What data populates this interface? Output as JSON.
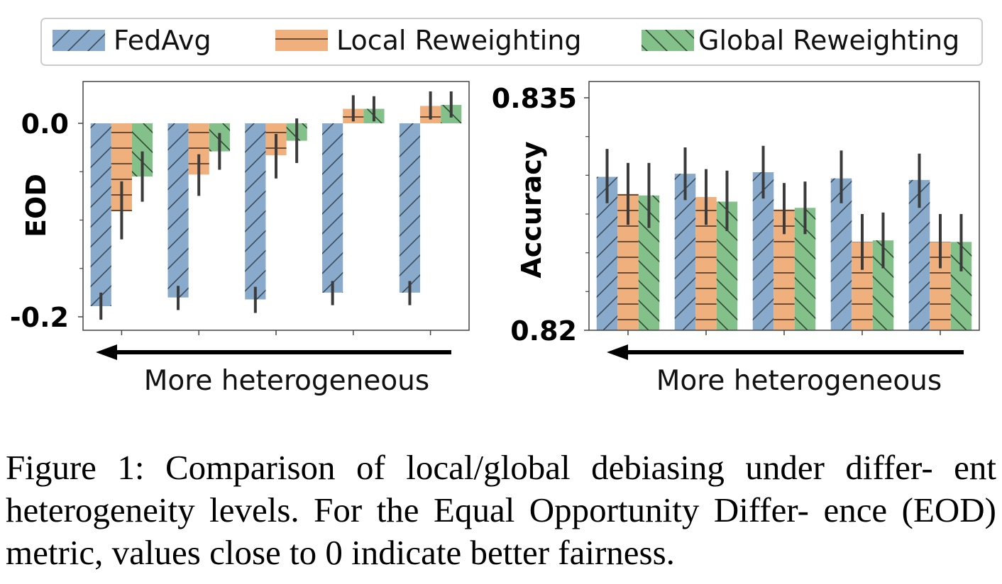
{
  "colors": {
    "fedavg": "#89aacb",
    "local": "#f0b07e",
    "global": "#83c08a",
    "errorbar": "#3b3b3b",
    "frame": "#444444"
  },
  "legend": {
    "items": [
      {
        "label": "FedAvg",
        "hatch": "forward-slash"
      },
      {
        "label": "Local Reweighting",
        "hatch": "horizontal"
      },
      {
        "label": "Global Reweighting",
        "hatch": "back-slash"
      }
    ]
  },
  "chart_data": [
    {
      "type": "bar",
      "ylabel": "EOD",
      "xlabel": "More heterogeneous",
      "ylim": [
        -0.215,
        0.04
      ],
      "yticks": [
        0.0,
        -0.2
      ],
      "ytick_labels": [
        "0.0",
        "-0.2"
      ],
      "grid": false,
      "categories": [
        "",
        "",
        "",
        "",
        ""
      ],
      "series": [
        {
          "name": "FedAvg",
          "values": [
            -0.189,
            -0.18,
            -0.182,
            -0.175,
            -0.175
          ],
          "err": [
            [
              -0.203,
              -0.175
            ],
            [
              -0.193,
              -0.168
            ],
            [
              -0.196,
              -0.169
            ],
            [
              -0.188,
              -0.163
            ],
            [
              -0.188,
              -0.163
            ]
          ]
        },
        {
          "name": "Local Reweighting",
          "values": [
            -0.091,
            -0.053,
            -0.033,
            0.015,
            0.018
          ],
          "err": [
            [
              -0.12,
              -0.06
            ],
            [
              -0.075,
              -0.032
            ],
            [
              -0.057,
              -0.011
            ],
            [
              0.002,
              0.029
            ],
            [
              0.004,
              0.033
            ]
          ]
        },
        {
          "name": "Global Reweighting",
          "values": [
            -0.055,
            -0.029,
            -0.018,
            0.015,
            0.019
          ],
          "err": [
            [
              -0.081,
              -0.029
            ],
            [
              -0.048,
              -0.01
            ],
            [
              -0.041,
              0.005
            ],
            [
              0.002,
              0.028
            ],
            [
              0.006,
              0.033
            ]
          ]
        }
      ]
    },
    {
      "type": "bar",
      "ylabel": "Accuracy",
      "xlabel": "More heterogeneous",
      "ylim": [
        0.82,
        0.8357
      ],
      "yticks": [
        0.835,
        0.82
      ],
      "ytick_labels": [
        "0.835",
        "0.82"
      ],
      "grid": false,
      "categories": [
        "",
        "",
        "",
        "",
        ""
      ],
      "series": [
        {
          "name": "FedAvg",
          "values": [
            0.8299,
            0.8301,
            0.8302,
            0.8298,
            0.8297
          ],
          "err": [
            [
              0.8282,
              0.8317
            ],
            [
              0.8284,
              0.8318
            ],
            [
              0.8285,
              0.8319
            ],
            [
              0.8282,
              0.8316
            ],
            [
              0.8279,
              0.8314
            ]
          ]
        },
        {
          "name": "Local Reweighting",
          "values": [
            0.8288,
            0.8286,
            0.8278,
            0.8257,
            0.8257
          ],
          "err": [
            [
              0.8268,
              0.8308
            ],
            [
              0.8268,
              0.8304
            ],
            [
              0.8262,
              0.8295
            ],
            [
              0.8239,
              0.8275
            ],
            [
              0.824,
              0.8275
            ]
          ]
        },
        {
          "name": "Global Reweighting",
          "values": [
            0.8287,
            0.8283,
            0.8279,
            0.8258,
            0.8257
          ],
          "err": [
            [
              0.8266,
              0.8308
            ],
            [
              0.8264,
              0.8303
            ],
            [
              0.8262,
              0.8296
            ],
            [
              0.824,
              0.8276
            ],
            [
              0.8238,
              0.8275
            ]
          ]
        }
      ]
    }
  ],
  "caption": {
    "text": "Figure 1: Comparison of local/global debiasing under differ- ent heterogeneity levels. For the Equal Opportunity Differ- ence (EOD) metric, values close to 0 indicate better fairness."
  }
}
